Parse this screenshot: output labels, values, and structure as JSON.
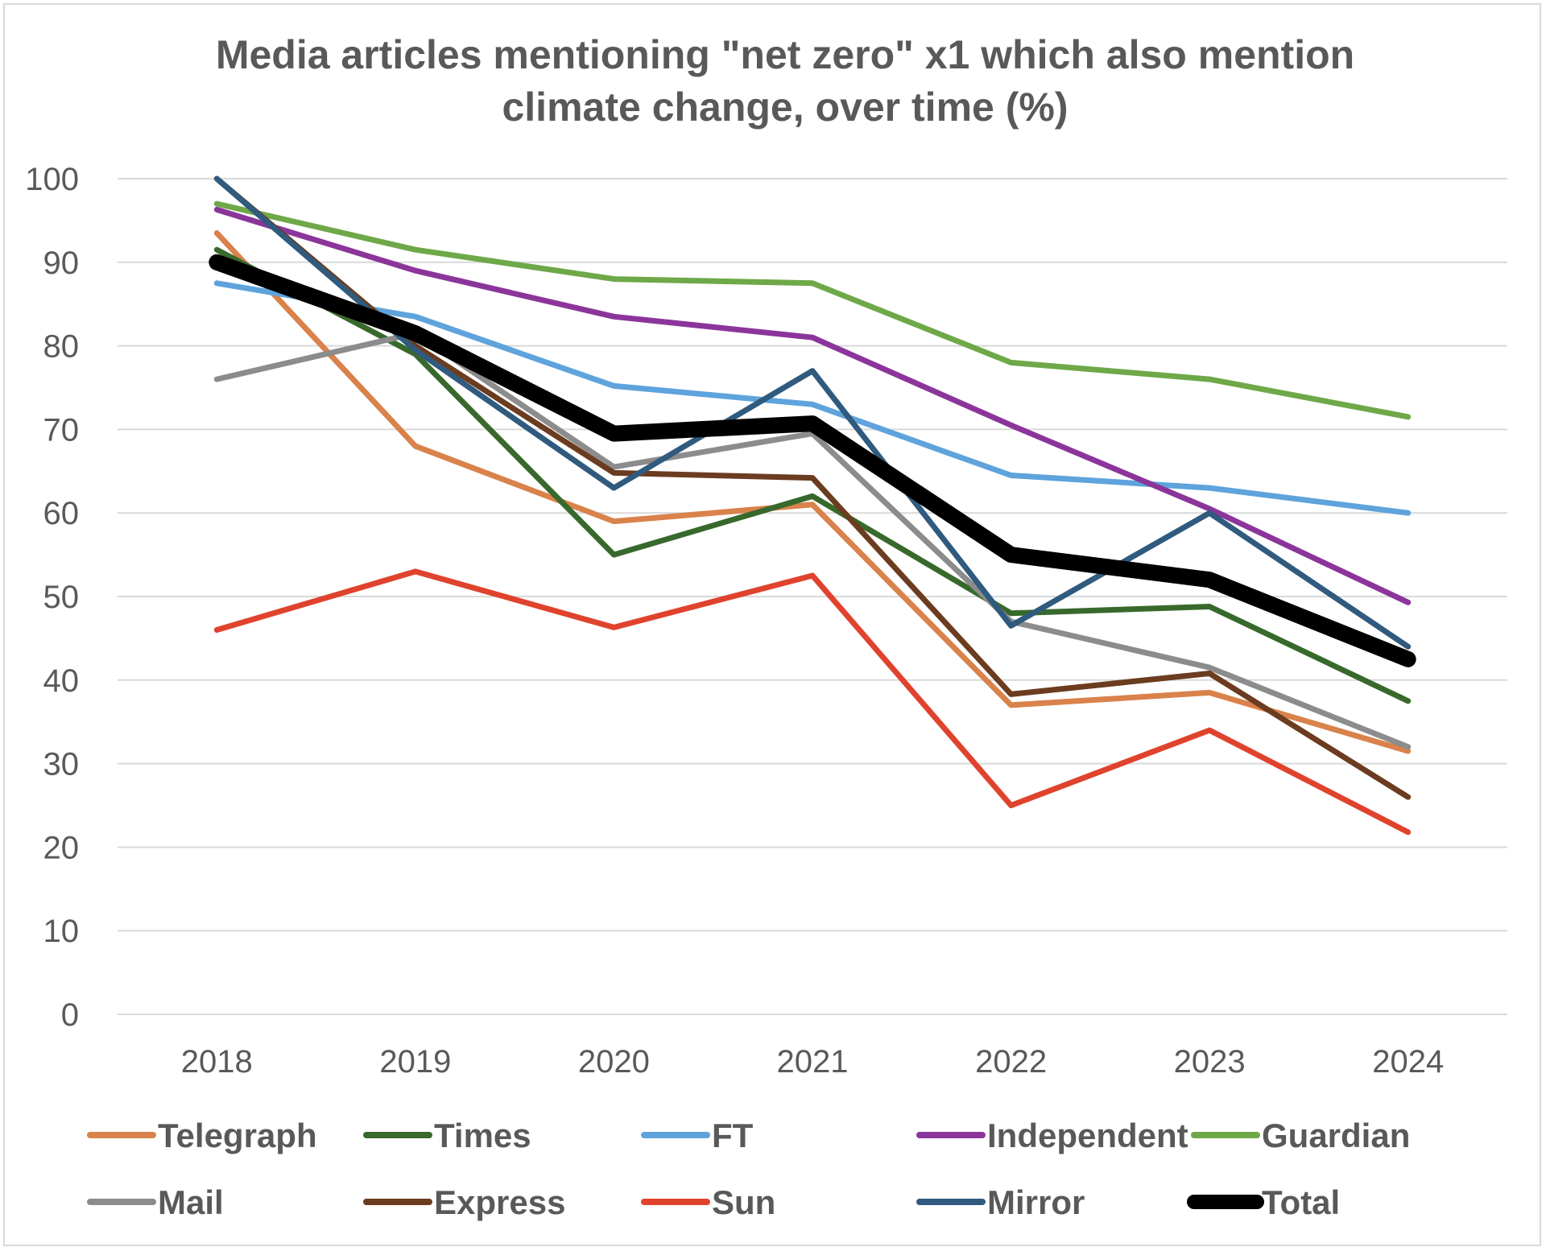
{
  "chart_data": {
    "type": "line",
    "title_lines": [
      "Media articles mentioning \"net zero\" x1 which also mention",
      "climate change, over time (%)"
    ],
    "xlabel": "",
    "ylabel": "",
    "x": [
      "2018",
      "2019",
      "2020",
      "2021",
      "2022",
      "2023",
      "2024"
    ],
    "y_ticks": [
      "0",
      "10",
      "20",
      "30",
      "40",
      "50",
      "60",
      "70",
      "80",
      "90",
      "100"
    ],
    "ylim": [
      0,
      100
    ],
    "grid": true,
    "legend_position": "bottom",
    "series": [
      {
        "name": "Telegraph",
        "color": "#d9824b",
        "width": 7,
        "values": [
          93.5,
          68,
          59,
          61,
          37,
          38.5,
          31.5
        ]
      },
      {
        "name": "Times",
        "color": "#38692c",
        "width": 7,
        "values": [
          91.5,
          79,
          55,
          62,
          48,
          48.8,
          37.5
        ]
      },
      {
        "name": "FT",
        "color": "#5ea3dc",
        "width": 7,
        "values": [
          87.5,
          83.5,
          75.2,
          73,
          64.5,
          63,
          60
        ]
      },
      {
        "name": "Independent",
        "color": "#8b359b",
        "width": 7,
        "values": [
          96.3,
          89,
          83.5,
          81,
          70.5,
          60.5,
          49.3
        ]
      },
      {
        "name": "Guardian",
        "color": "#6ea848",
        "width": 7,
        "values": [
          97,
          91.5,
          88,
          87.5,
          78,
          76,
          71.5
        ]
      },
      {
        "name": "Mail",
        "color": "#8c8c8c",
        "width": 7,
        "values": [
          76,
          81.5,
          65.5,
          69.5,
          47,
          41.5,
          32
        ]
      },
      {
        "name": "Express",
        "color": "#6b3c1f",
        "width": 7,
        "values": [
          100,
          80,
          64.8,
          64.2,
          38.3,
          40.8,
          26
        ]
      },
      {
        "name": "Sun",
        "color": "#e0432d",
        "width": 7,
        "values": [
          46,
          53,
          46.3,
          52.5,
          25,
          34,
          21.8
        ]
      },
      {
        "name": "Mirror",
        "color": "#305a7e",
        "width": 7,
        "values": [
          100,
          79.5,
          63,
          77,
          46.5,
          60,
          44
        ]
      },
      {
        "name": "Total",
        "color": "#000000",
        "width": 20,
        "values": [
          90,
          81.5,
          69.5,
          70.7,
          55,
          52,
          42.5
        ]
      }
    ]
  }
}
